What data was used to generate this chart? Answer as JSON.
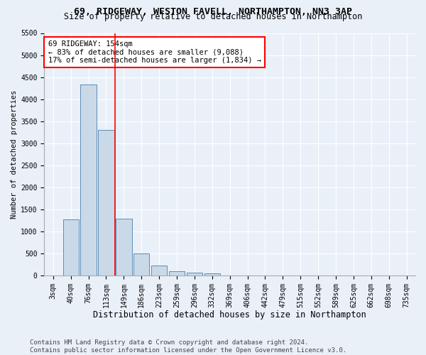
{
  "title": "69, RIDGEWAY, WESTON FAVELL, NORTHAMPTON, NN3 3AP",
  "subtitle": "Size of property relative to detached houses in Northampton",
  "xlabel": "Distribution of detached houses by size in Northampton",
  "ylabel": "Number of detached properties",
  "bin_labels": [
    "3sqm",
    "40sqm",
    "76sqm",
    "113sqm",
    "149sqm",
    "186sqm",
    "223sqm",
    "259sqm",
    "296sqm",
    "332sqm",
    "369sqm",
    "406sqm",
    "442sqm",
    "479sqm",
    "515sqm",
    "552sqm",
    "589sqm",
    "625sqm",
    "662sqm",
    "698sqm",
    "735sqm"
  ],
  "bar_values": [
    0,
    1270,
    4330,
    3300,
    1290,
    490,
    220,
    90,
    60,
    50,
    0,
    0,
    0,
    0,
    0,
    0,
    0,
    0,
    0,
    0,
    0
  ],
  "bar_color": "#c9d9e8",
  "bar_edge_color": "#5b8db8",
  "vline_color": "red",
  "annotation_text": "69 RIDGEWAY: 154sqm\n← 83% of detached houses are smaller (9,088)\n17% of semi-detached houses are larger (1,834) →",
  "annotation_box_color": "white",
  "annotation_box_edge": "red",
  "ylim": [
    0,
    5500
  ],
  "yticks": [
    0,
    500,
    1000,
    1500,
    2000,
    2500,
    3000,
    3500,
    4000,
    4500,
    5000,
    5500
  ],
  "bg_color": "#eaf0f8",
  "footer": "Contains HM Land Registry data © Crown copyright and database right 2024.\nContains public sector information licensed under the Open Government Licence v3.0.",
  "title_fontsize": 9.5,
  "subtitle_fontsize": 8.5,
  "xlabel_fontsize": 8.5,
  "ylabel_fontsize": 7.5,
  "tick_fontsize": 7,
  "annotation_fontsize": 7.5,
  "footer_fontsize": 6.5
}
